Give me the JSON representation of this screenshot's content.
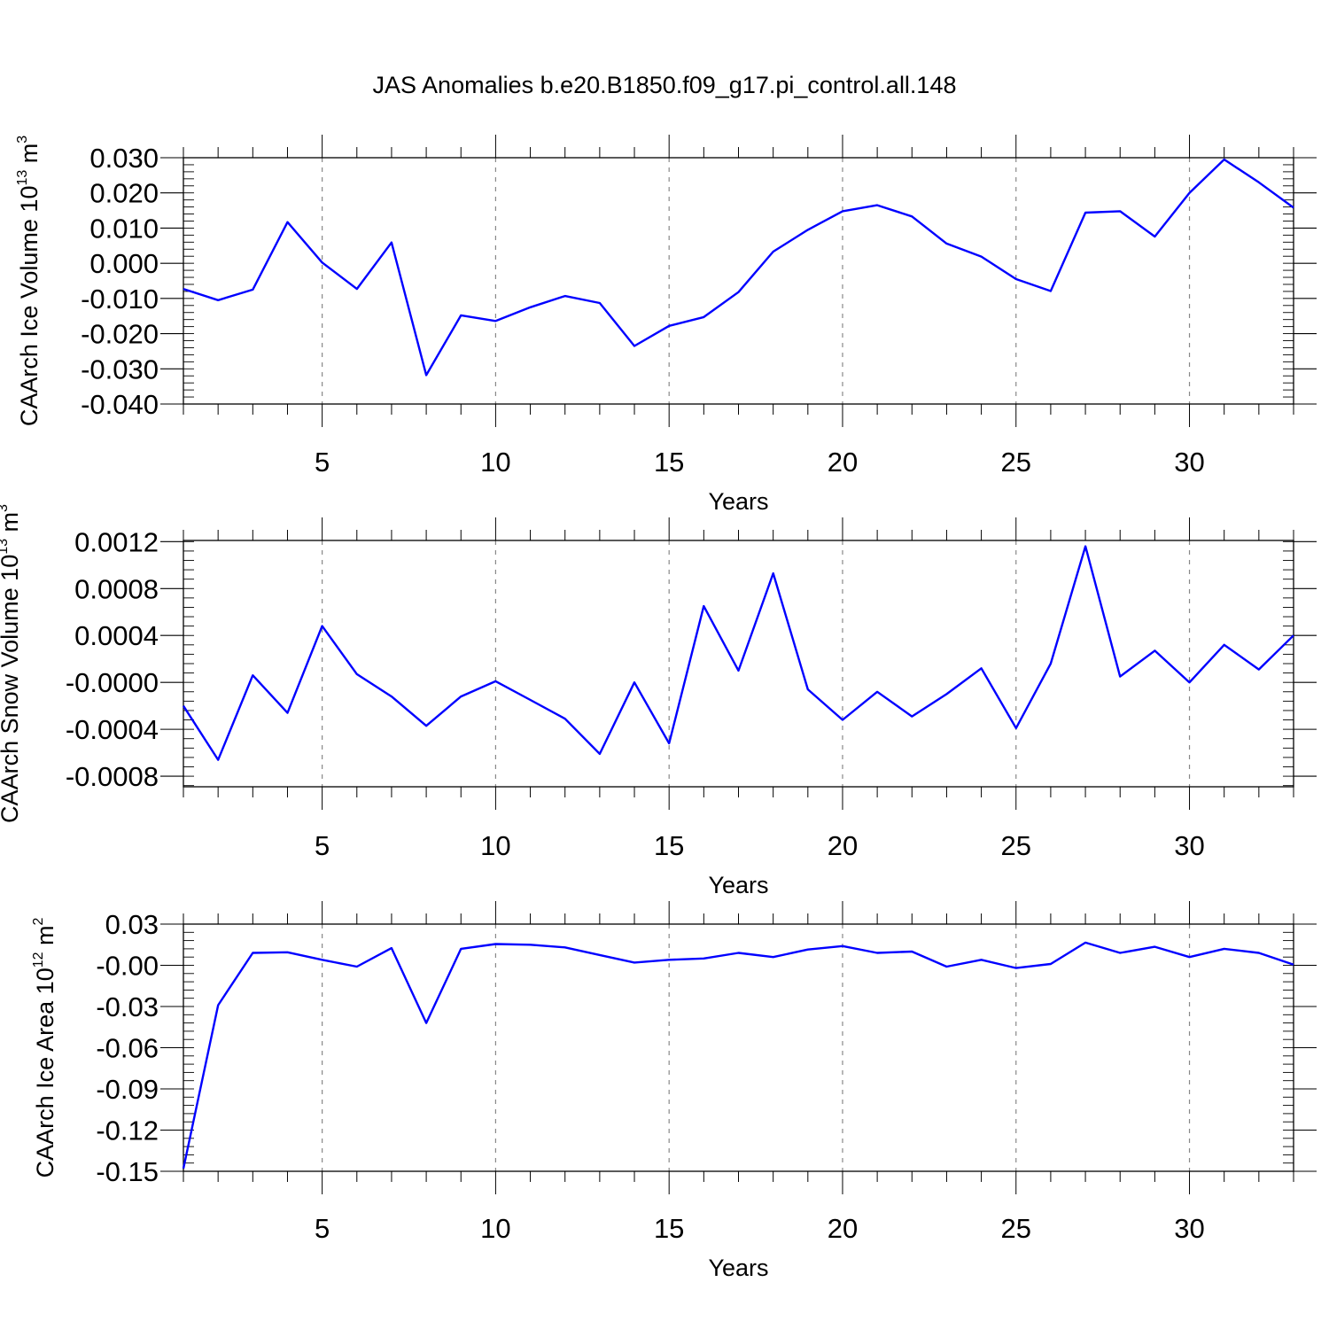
{
  "chart_data": {
    "title": "JAS Anomalies b.e20.B1850.f09_g17.pi_control.all.148",
    "type": "line",
    "panels": [
      {
        "id": "ice-volume",
        "type": "line",
        "xlabel": "Years",
        "ylabel_main": "CAArch Ice Volume 10",
        "ylabel_exp": "13",
        "ylabel_unit": " m",
        "ylabel_unit_exp": "3",
        "xlim": [
          1,
          33
        ],
        "ylim": [
          -0.04,
          0.03
        ],
        "yticks": [
          0.03,
          0.02,
          0.01,
          0.0,
          -0.01,
          -0.02,
          -0.03,
          -0.04
        ],
        "ytick_labels": [
          "0.030",
          "0.020",
          "0.010",
          "0.000",
          "-0.010",
          "-0.020",
          "-0.030",
          "-0.040"
        ],
        "y_minor_step": 0.002,
        "xticks": [
          5,
          10,
          15,
          20,
          25,
          30
        ],
        "xtick_labels": [
          "5",
          "10",
          "15",
          "20",
          "25",
          "30"
        ],
        "grid": "vertical dashed at major x ticks",
        "line_color": "#0000ff",
        "x": [
          1,
          2,
          3,
          4,
          5,
          6,
          7,
          8,
          9,
          10,
          11,
          12,
          13,
          14,
          15,
          16,
          17,
          18,
          19,
          20,
          21,
          22,
          23,
          24,
          25,
          26,
          27,
          28,
          29,
          30,
          31,
          32,
          33
        ],
        "values": [
          -0.0073,
          -0.0105,
          -0.0075,
          0.0117,
          0.0002,
          -0.0073,
          0.0059,
          -0.0318,
          -0.0148,
          -0.0164,
          -0.0125,
          -0.0093,
          -0.0113,
          -0.0235,
          -0.0178,
          -0.0153,
          -0.0082,
          0.0033,
          0.0095,
          0.0148,
          0.0165,
          0.0133,
          0.0056,
          0.0019,
          -0.0045,
          -0.0079,
          0.0144,
          0.0148,
          0.0076,
          0.02,
          0.0295,
          0.023,
          0.0158
        ]
      },
      {
        "id": "snow-volume",
        "type": "line",
        "xlabel": "Years",
        "ylabel_main": "CAArch Snow Volume 10",
        "ylabel_exp": "13",
        "ylabel_unit": " m",
        "ylabel_unit_exp": "3",
        "xlim": [
          1,
          33
        ],
        "ylim": [
          -0.00089,
          0.00121
        ],
        "yticks": [
          0.0012,
          0.0008,
          0.0004,
          0.0,
          -0.0004,
          -0.0008
        ],
        "ytick_labels": [
          "0.0012",
          "0.0008",
          "0.0004",
          "-0.0000",
          "-0.0004",
          "-0.0008"
        ],
        "y_minor_step": 8e-05,
        "xticks": [
          5,
          10,
          15,
          20,
          25,
          30
        ],
        "xtick_labels": [
          "5",
          "10",
          "15",
          "20",
          "25",
          "30"
        ],
        "grid": "vertical dashed at major x ticks",
        "line_color": "#0000ff",
        "x": [
          1,
          2,
          3,
          4,
          5,
          6,
          7,
          8,
          9,
          10,
          11,
          12,
          13,
          14,
          15,
          16,
          17,
          18,
          19,
          20,
          21,
          22,
          23,
          24,
          25,
          26,
          27,
          28,
          29,
          30,
          31,
          32,
          33
        ],
        "values": [
          -0.0002,
          -0.00066,
          6e-05,
          -0.00026,
          0.00048,
          7e-05,
          -0.00012,
          -0.00037,
          -0.00012,
          1e-05,
          -0.00015,
          -0.00031,
          -0.00061,
          0.0,
          -0.00052,
          0.00065,
          0.0001,
          0.00093,
          -6e-05,
          -0.00032,
          -8e-05,
          -0.00029,
          -0.0001,
          0.00012,
          -0.00039,
          0.00016,
          0.00116,
          5e-05,
          0.00027,
          0.0,
          0.00032,
          0.00011,
          0.0004
        ]
      },
      {
        "id": "ice-area",
        "type": "line",
        "xlabel": "Years",
        "ylabel_main": "CAArch Ice Area 10",
        "ylabel_exp": "12",
        "ylabel_unit": " m",
        "ylabel_unit_exp": "2",
        "xlim": [
          1,
          33
        ],
        "ylim": [
          -0.15,
          0.03
        ],
        "yticks": [
          0.03,
          0.0,
          -0.03,
          -0.06,
          -0.09,
          -0.12,
          -0.15
        ],
        "ytick_labels": [
          "0.03",
          "-0.00",
          "-0.03",
          "-0.06",
          "-0.09",
          "-0.12",
          "-0.15"
        ],
        "y_minor_step": 0.006,
        "xticks": [
          5,
          10,
          15,
          20,
          25,
          30
        ],
        "xtick_labels": [
          "5",
          "10",
          "15",
          "20",
          "25",
          "30"
        ],
        "grid": "vertical dashed at major x ticks",
        "line_color": "#0000ff",
        "x": [
          1,
          2,
          3,
          4,
          5,
          6,
          7,
          8,
          9,
          10,
          11,
          12,
          13,
          14,
          15,
          16,
          17,
          18,
          19,
          20,
          21,
          22,
          23,
          24,
          25,
          26,
          27,
          28,
          29,
          30,
          31,
          32,
          33
        ],
        "values": [
          -0.148,
          -0.029,
          0.009,
          0.0095,
          0.004,
          -0.001,
          0.0125,
          -0.042,
          0.012,
          0.0155,
          0.015,
          0.013,
          0.0075,
          0.002,
          0.004,
          0.005,
          0.009,
          0.006,
          0.0115,
          0.014,
          0.009,
          0.01,
          -0.001,
          0.004,
          -0.002,
          0.001,
          0.0165,
          0.009,
          0.0135,
          0.006,
          0.012,
          0.009,
          0.0005
        ]
      }
    ]
  }
}
